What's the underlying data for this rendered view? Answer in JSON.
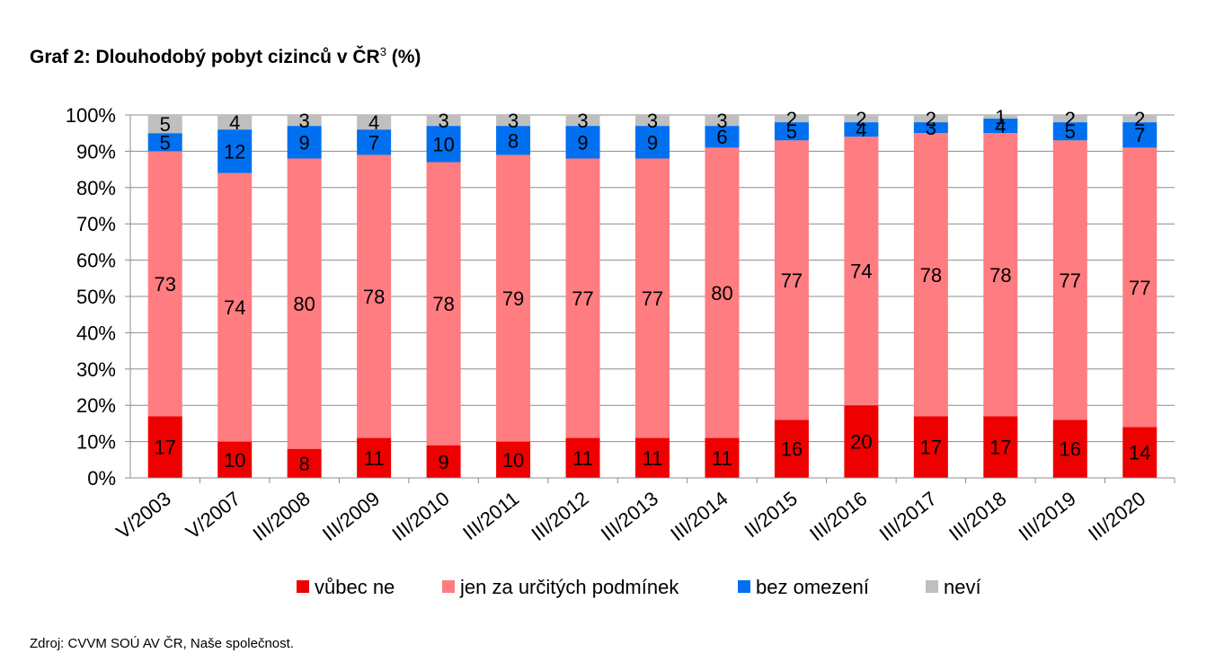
{
  "title": {
    "main": "Graf 2: Dlouhodobý pobyt cizinců v ČR",
    "superscript": "3",
    "suffix": " (%)"
  },
  "source": "Zdroj: CVVM SOÚ AV ČR, Naše společnost.",
  "chart_data": {
    "type": "bar",
    "stacked": true,
    "categories": [
      "V/2003",
      "V/2007",
      "III/2008",
      "III/2009",
      "III/2010",
      "III/2011",
      "III/2012",
      "III/2013",
      "III/2014",
      "II/2015",
      "III/2016",
      "III/2017",
      "III/2018",
      "III/2019",
      "III/2020"
    ],
    "series": [
      {
        "name": "vůbec ne",
        "color": "#ee0000",
        "values": [
          17,
          10,
          8,
          11,
          9,
          10,
          11,
          11,
          11,
          16,
          20,
          17,
          17,
          16,
          14
        ]
      },
      {
        "name": "jen za určitých podmínek",
        "color": "#ff7c80",
        "values": [
          73,
          74,
          80,
          78,
          78,
          79,
          77,
          77,
          80,
          77,
          74,
          78,
          78,
          77,
          77
        ]
      },
      {
        "name": "bez omezení",
        "color": "#0070f0",
        "values": [
          5,
          12,
          9,
          7,
          10,
          8,
          9,
          9,
          6,
          5,
          4,
          3,
          4,
          5,
          7
        ]
      },
      {
        "name": "neví",
        "color": "#bfbfbf",
        "values": [
          5,
          4,
          3,
          4,
          3,
          3,
          3,
          3,
          3,
          2,
          2,
          2,
          1,
          2,
          2
        ]
      }
    ],
    "y_ticks": [
      "0%",
      "10%",
      "20%",
      "30%",
      "40%",
      "50%",
      "60%",
      "70%",
      "80%",
      "90%",
      "100%"
    ],
    "ylim": [
      0,
      100
    ],
    "grid": true,
    "legend_position": "bottom"
  }
}
